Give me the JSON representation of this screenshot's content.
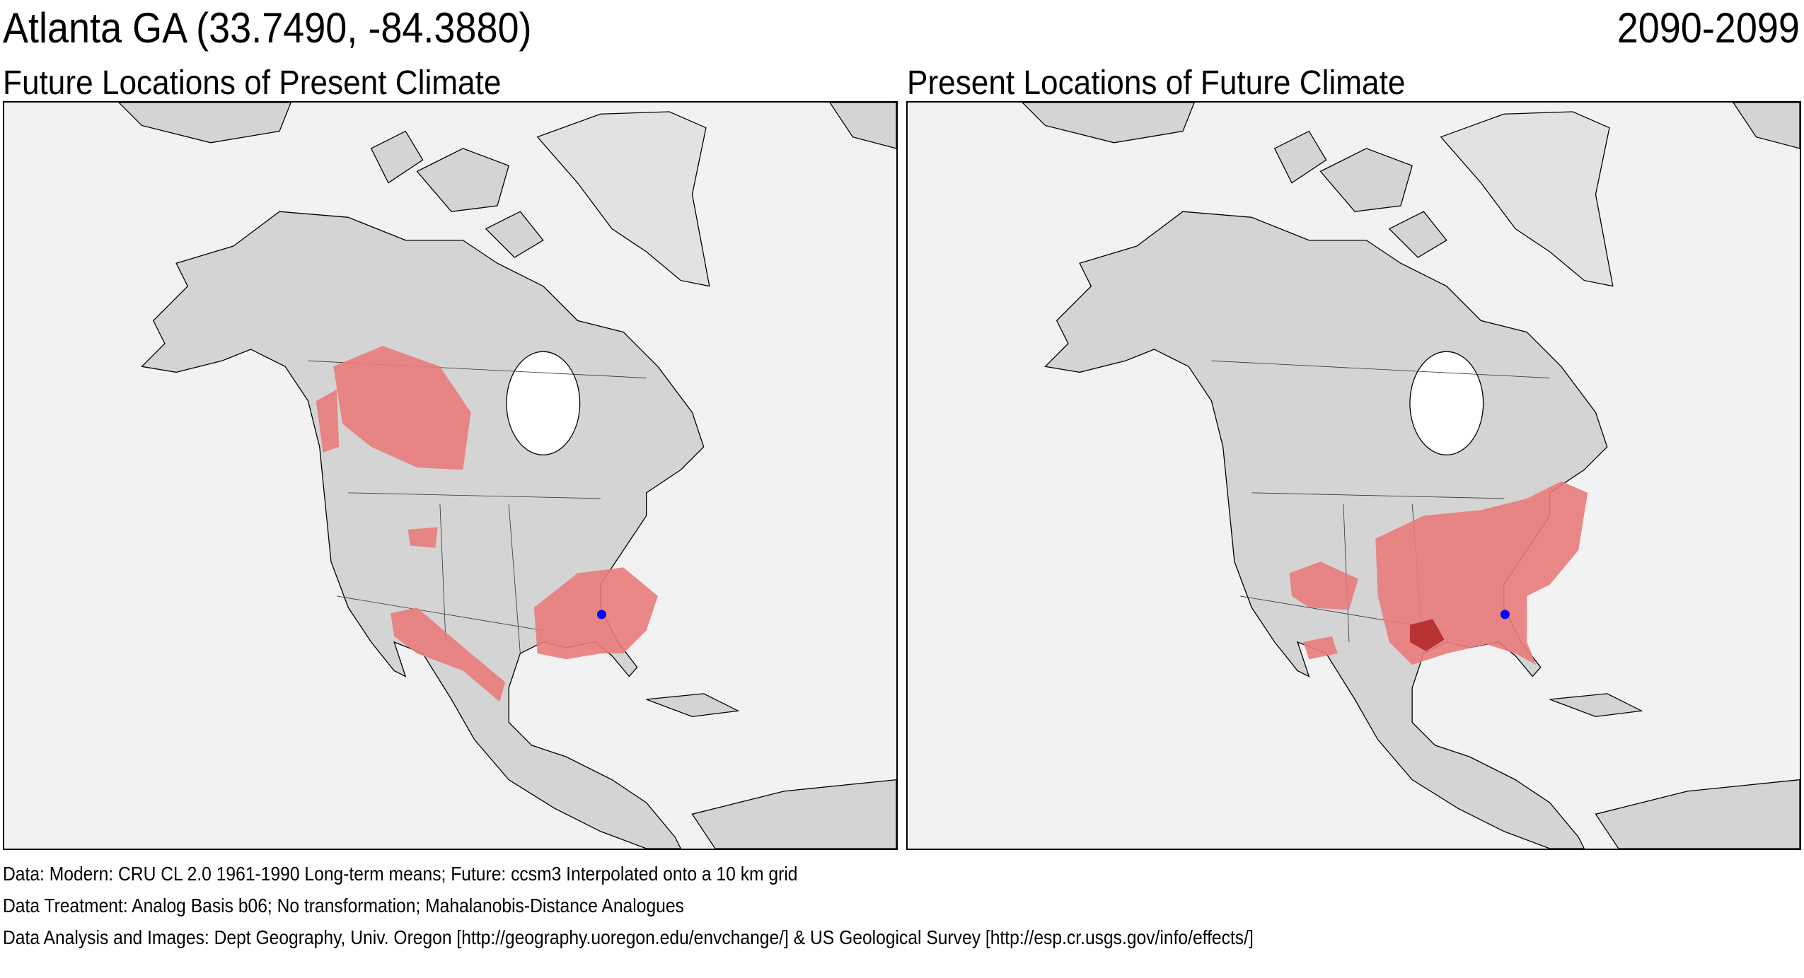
{
  "header": {
    "location_title": "Atlanta GA  (33.7490, -84.3880)",
    "period": "2090-2099"
  },
  "panels": [
    {
      "title": "Future Locations of Present Climate"
    },
    {
      "title": "Present Locations of Future Climate"
    }
  ],
  "footer": {
    "data_line": "Data:  Modern: CRU CL 2.0 1961-1990 Long-term means; Future: ccsm3 Interpolated onto a 10 km grid",
    "treatment_line": "Data Treatment:  Analog Basis b06; No transformation; Mahalanobis-Distance Analogues",
    "analysis_line": "Data Analysis and Images:  Dept Geography, Univ. Oregon [http://geography.uoregon.edu/envchange/] & US Geological Survey [http://esp.cr.usgs.gov/info/effects/]"
  },
  "colors": {
    "land": "#d4d4d4",
    "water": "#f2f2f2",
    "analog": "#e97c7c",
    "analog_strong": "#b83232",
    "site_marker": "#0000ff"
  }
}
